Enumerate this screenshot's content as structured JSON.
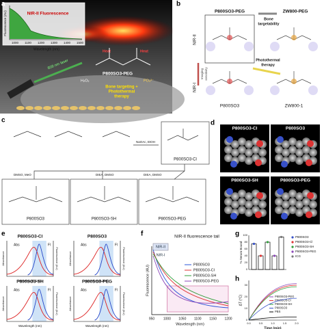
{
  "panel_labels": [
    "a",
    "b",
    "c",
    "d",
    "e",
    "f",
    "g",
    "h"
  ],
  "a": {
    "inset_title": "NIR-II Fluorescence",
    "y_label": "Fluorescence (AU)",
    "x_label": "Wavelength (nm)",
    "x_ticks": [
      "1000",
      "1100",
      "1200",
      "1300",
      "1400",
      "1500"
    ],
    "laser": "808 nm laser",
    "heat": [
      "Heat",
      "Heat"
    ],
    "h2o2": "H₂O₂",
    "po4": "PO₄³⁻",
    "compound": "P800SO3-PEG",
    "caption": [
      "Bone targeting +",
      "Photothermal",
      "therapy"
    ]
  },
  "b": {
    "top_left": "P800SO3-PEG",
    "top_right": "ZW800-PEG",
    "bone": [
      "Bone",
      "targetability"
    ],
    "nir2": "NIR-II",
    "nir1": "NIR-I",
    "imaging": [
      "Imaging",
      "sensitivity"
    ],
    "ptt": [
      "Photothermal",
      "therapy"
    ],
    "bottom_left": "P800SO3",
    "bottom_right": "ZW800-1"
  },
  "c": {
    "reagent": "NaOAc, EtOH",
    "compound_main": "P800SO3-Cl",
    "reagents": [
      "DMSO, MeO",
      "DIEA, DMSO",
      "DIEA, DMSO"
    ],
    "products": [
      "P800SO3",
      "P800SO3-SH",
      "P800SO3-PEG"
    ]
  },
  "d": {
    "labels": [
      "P800SO3-Cl",
      "P800SO3",
      "P800SO3-SH",
      "P800SO3-PEG"
    ]
  },
  "e": {
    "titles": [
      "P800SO3-Cl",
      "P800SO3",
      "P800SO3-SH",
      "P800SO3-PEG"
    ],
    "abs": "Abs",
    "fl": "Fl",
    "y_left": "Absorbance",
    "y_right": "Fluorescence (AU)",
    "x_label": "Wavelength (nm)"
  },
  "f": {
    "title": "NIR-II fluorescence tail",
    "bands": [
      "NIR-II",
      "NIR-I"
    ],
    "series": [
      "P800SO3",
      "P800SO3-Cl",
      "P800SO3-SH",
      "P800SO3-PEG"
    ],
    "x_ticks": [
      "950",
      "1000",
      "1050",
      "1100",
      "1150",
      "1200"
    ],
    "x_label": "Wavelength (nm)",
    "y_label": "Fluorescence (AU)"
  },
  "g": {
    "y_label": "% Serum Bound",
    "y_ticks": [
      "0",
      "20",
      "40",
      "60",
      "80",
      "100"
    ],
    "legend": [
      "P800SO3",
      "P800SO3-Cl",
      "P800SO3-SH",
      "P800SO3-PEG",
      "ICG"
    ]
  },
  "h": {
    "y_label": "ΔT (°C)",
    "y_ticks": [
      "0",
      "10",
      "20",
      "30"
    ],
    "x_ticks": [
      "0.0",
      "0.5",
      "1.0",
      "1.5",
      "2.0"
    ],
    "x_label": "Time (min)",
    "legend": [
      "P800SO3-PEG",
      "P800SO3-Cl",
      "P800SO3-SH",
      "P800SO3",
      "PBS"
    ]
  }
}
